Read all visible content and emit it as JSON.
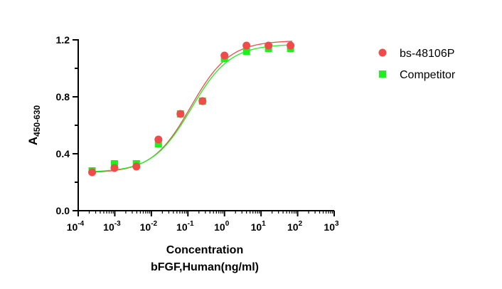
{
  "chart_data": {
    "type": "scatter",
    "ylabel": "A",
    "ylabel_sub": "450-630",
    "xlabel_line1": "Concentration",
    "xlabel_line2": "bFGF,Human(ng/ml)",
    "x_scale": "log",
    "xlim": [
      0.0001,
      1000
    ],
    "ylim": [
      0,
      1.2
    ],
    "x_ticks": [
      {
        "base": "10",
        "exp": "-4",
        "value": 0.0001
      },
      {
        "base": "10",
        "exp": "-3",
        "value": 0.001
      },
      {
        "base": "10",
        "exp": "-2",
        "value": 0.01
      },
      {
        "base": "10",
        "exp": "-1",
        "value": 0.1
      },
      {
        "base": "10",
        "exp": "0",
        "value": 1
      },
      {
        "base": "10",
        "exp": "1",
        "value": 10
      },
      {
        "base": "10",
        "exp": "2",
        "value": 100
      },
      {
        "base": "10",
        "exp": "3",
        "value": 1000
      }
    ],
    "y_ticks": [
      "0.0",
      "0.4",
      "0.8",
      "1.2"
    ],
    "legend_position": "right",
    "grid": false,
    "series": [
      {
        "name": "bs-48106P",
        "marker": "circle",
        "color": "#f04b4b",
        "x": [
          0.00024,
          0.00098,
          0.0039,
          0.0156,
          0.0625,
          0.25,
          1.0,
          4.0,
          16.0,
          64.0
        ],
        "y": [
          0.27,
          0.3,
          0.31,
          0.5,
          0.68,
          0.77,
          1.09,
          1.16,
          1.16,
          1.16
        ],
        "fit": {
          "bottom": 0.265,
          "top": 1.195,
          "ec50": 0.12,
          "hill": 0.82
        }
      },
      {
        "name": "Competitor",
        "marker": "square",
        "color": "#1ef01e",
        "x": [
          0.00024,
          0.00098,
          0.0039,
          0.0156,
          0.0625,
          0.25,
          1.0,
          4.0,
          16.0,
          64.0
        ],
        "y": [
          0.28,
          0.33,
          0.33,
          0.47,
          0.68,
          0.77,
          1.07,
          1.12,
          1.14,
          1.14
        ],
        "fit": {
          "bottom": 0.27,
          "top": 1.17,
          "ec50": 0.125,
          "hill": 0.82
        }
      }
    ]
  }
}
